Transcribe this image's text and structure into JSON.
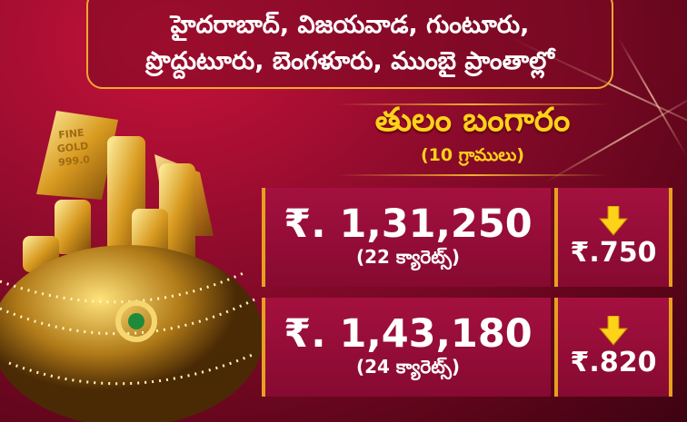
{
  "banner": {
    "line1": "హైదరాబాద్, విజయవాడ, గుంటూరు,",
    "line2": "ప్రొద్దుటూరు, బెంగళూరు, ముంబై ప్రాంతాల్లో"
  },
  "title": "తులం బంగారం",
  "subtitle": "(10 గ్రాములు)",
  "gold_bar_text": "FINE GOLD 999.0",
  "rates": [
    {
      "price": "₹. 1,31,250",
      "karat": "(22 క్యారెట్స్)",
      "change": "₹.750",
      "direction": "down"
    },
    {
      "price": "₹. 1,43,180",
      "karat": "(24 క్యారెట్స్)",
      "change": "₹.820",
      "direction": "down"
    }
  ],
  "colors": {
    "accent": "#ffd21a",
    "border": "#e8a020",
    "box": "#9a0e3a"
  }
}
